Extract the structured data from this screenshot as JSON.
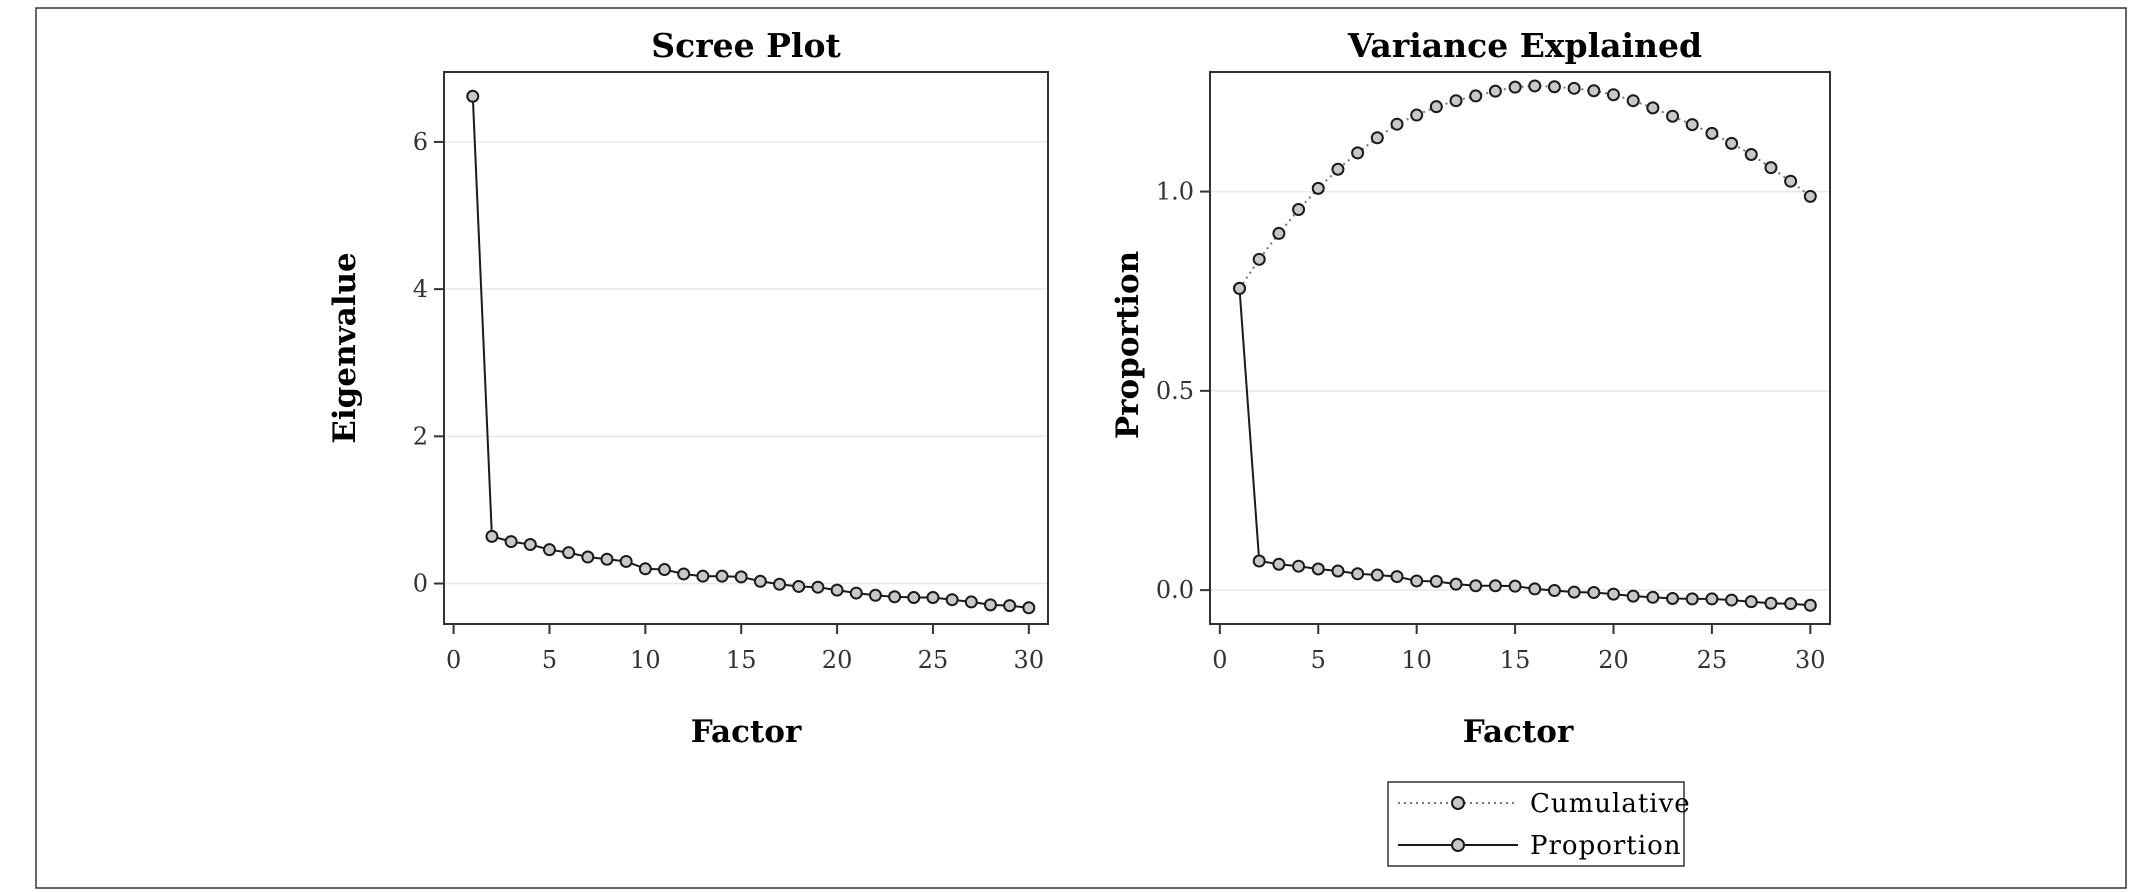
{
  "colors": {
    "axis": "#333333",
    "grid": "#e8e8e8",
    "line": "#1a1a1a",
    "dotted": "#777777",
    "marker_fill": "#c8c8c8"
  },
  "chart_data": [
    {
      "type": "line",
      "title": "Scree Plot",
      "xlabel": "Factor",
      "ylabel": "Eigenvalue",
      "xlim": [
        -0.5,
        31
      ],
      "ylim": [
        -0.55,
        6.95
      ],
      "xticks": [
        0,
        5,
        10,
        15,
        20,
        25,
        30
      ],
      "yticks": [
        0,
        2,
        4,
        6
      ],
      "ytick_labels": [
        "0",
        "2",
        "4",
        "6"
      ],
      "grid": true,
      "series": [
        {
          "style": "solid",
          "x": [
            1,
            2,
            3,
            4,
            5,
            6,
            7,
            8,
            9,
            10,
            11,
            12,
            13,
            14,
            15,
            16,
            17,
            18,
            19,
            20,
            21,
            22,
            23,
            24,
            25,
            26,
            27,
            28,
            29,
            30
          ],
          "values": [
            6.62,
            0.64,
            0.57,
            0.53,
            0.46,
            0.42,
            0.36,
            0.33,
            0.3,
            0.2,
            0.19,
            0.13,
            0.1,
            0.1,
            0.09,
            0.03,
            -0.01,
            -0.04,
            -0.05,
            -0.09,
            -0.13,
            -0.16,
            -0.18,
            -0.19,
            -0.19,
            -0.22,
            -0.25,
            -0.29,
            -0.3,
            -0.33
          ]
        }
      ]
    },
    {
      "type": "line",
      "title": "Variance Explained",
      "xlabel": "Factor",
      "ylabel": "Proportion",
      "xlim": [
        -0.5,
        31
      ],
      "ylim": [
        -0.085,
        1.3
      ],
      "xticks": [
        0,
        5,
        10,
        15,
        20,
        25,
        30
      ],
      "yticks": [
        0,
        0.5,
        1.0
      ],
      "ytick_labels": [
        "0.0",
        "0.5",
        "1.0"
      ],
      "grid": true,
      "legend": {
        "placement": "bottom",
        "entries": [
          {
            "label": "Cumulative",
            "style": "dotted"
          },
          {
            "label": "Proportion",
            "style": "solid"
          }
        ]
      },
      "series": [
        {
          "name": "Cumulative",
          "style": "dotted",
          "x": [
            1,
            2,
            3,
            4,
            5,
            6,
            7,
            8,
            9,
            10,
            11,
            12,
            13,
            14,
            15,
            16,
            17,
            18,
            19,
            20,
            21,
            22,
            23,
            24,
            25,
            26,
            27,
            28,
            29,
            30
          ],
          "values": [
            0.757,
            0.83,
            0.895,
            0.955,
            1.008,
            1.056,
            1.097,
            1.135,
            1.169,
            1.192,
            1.213,
            1.228,
            1.24,
            1.252,
            1.262,
            1.265,
            1.263,
            1.259,
            1.253,
            1.243,
            1.228,
            1.21,
            1.189,
            1.168,
            1.146,
            1.121,
            1.093,
            1.06,
            1.026,
            0.988
          ]
        },
        {
          "name": "Proportion",
          "style": "solid",
          "x": [
            1,
            2,
            3,
            4,
            5,
            6,
            7,
            8,
            9,
            10,
            11,
            12,
            13,
            14,
            15,
            16,
            17,
            18,
            19,
            20,
            21,
            22,
            23,
            24,
            25,
            26,
            27,
            28,
            29,
            30
          ],
          "values": [
            0.757,
            0.073,
            0.065,
            0.06,
            0.053,
            0.048,
            0.041,
            0.038,
            0.034,
            0.023,
            0.022,
            0.015,
            0.011,
            0.011,
            0.01,
            0.003,
            -0.001,
            -0.005,
            -0.006,
            -0.01,
            -0.015,
            -0.018,
            -0.021,
            -0.022,
            -0.022,
            -0.025,
            -0.029,
            -0.033,
            -0.034,
            -0.038
          ]
        }
      ]
    }
  ]
}
